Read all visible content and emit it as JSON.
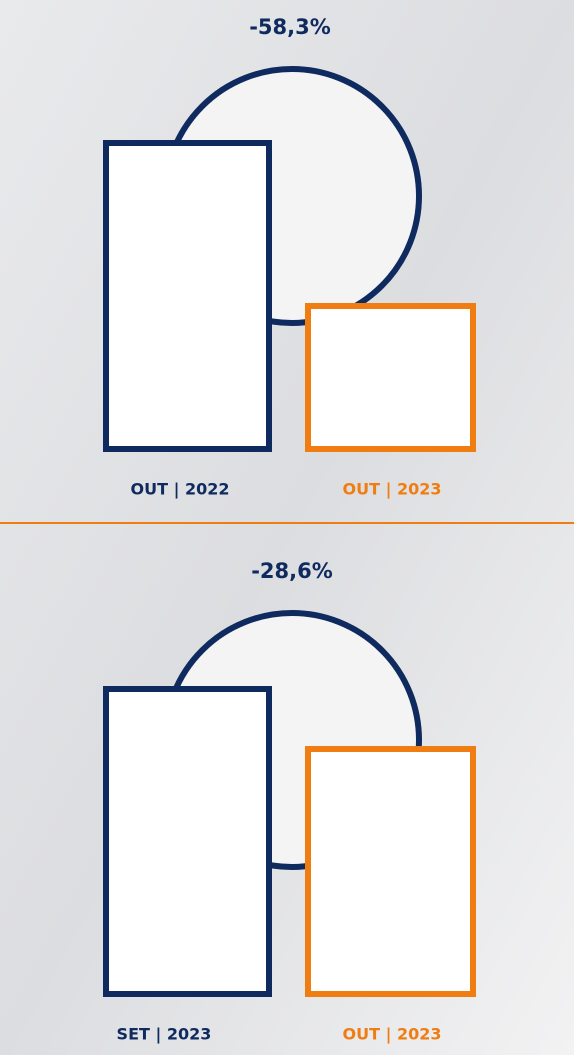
{
  "panels": [
    {
      "change": "-58,3%",
      "labels": [
        "OUT | 2022",
        "OUT | 2023"
      ]
    },
    {
      "change": "-28,6%",
      "labels": [
        "SET | 2023",
        "OUT | 2023"
      ]
    }
  ]
}
